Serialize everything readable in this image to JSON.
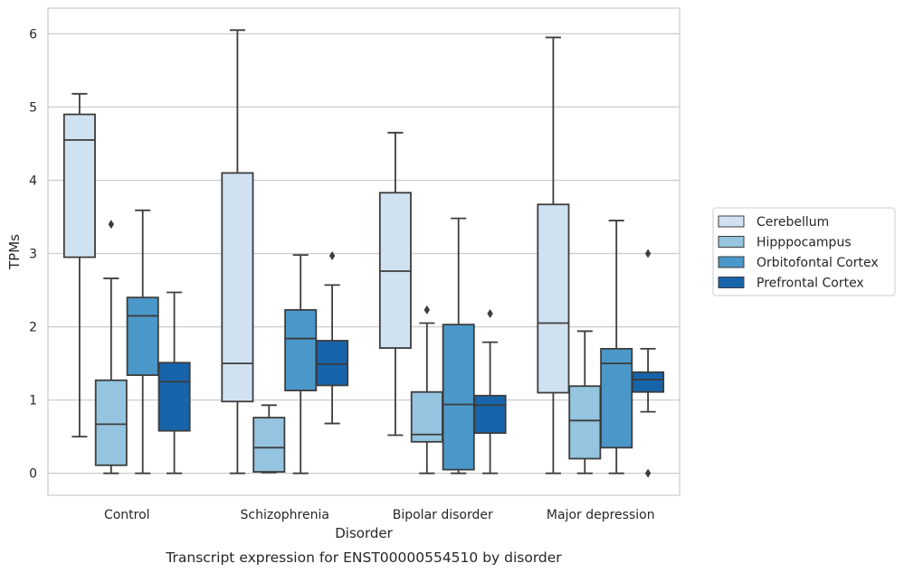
{
  "chart_data": {
    "type": "boxplot",
    "xlabel": "Disorder",
    "ylabel": "TPMs",
    "ylim": [
      -0.3,
      6.35
    ],
    "yticks": [
      0,
      1,
      2,
      3,
      4,
      5,
      6
    ],
    "grid": "horizontal",
    "legend_position": "right",
    "caption": "Transcript expression for ENST00000554510 by disorder",
    "categories": [
      "Control",
      "Schizophrenia",
      "Bipolar disorder",
      "Major depression"
    ],
    "series": [
      {
        "name": "Cerebellum",
        "color": "#d0e1f2",
        "boxes": [
          {
            "whislo": 0.5,
            "q1": 2.95,
            "med": 4.55,
            "q3": 4.9,
            "whishi": 5.18,
            "fliers": []
          },
          {
            "whislo": 0.0,
            "q1": 0.98,
            "med": 1.5,
            "q3": 4.1,
            "whishi": 6.05,
            "fliers": []
          },
          {
            "whislo": 0.52,
            "q1": 1.71,
            "med": 2.76,
            "q3": 3.83,
            "whishi": 4.65,
            "fliers": []
          },
          {
            "whislo": 0.0,
            "q1": 1.1,
            "med": 2.05,
            "q3": 3.67,
            "whishi": 5.95,
            "fliers": []
          }
        ]
      },
      {
        "name": "Hipppocampus",
        "color": "#94c4df",
        "boxes": [
          {
            "whislo": 0.0,
            "q1": 0.11,
            "med": 0.67,
            "q3": 1.27,
            "whishi": 2.66,
            "fliers": [
              3.4
            ]
          },
          {
            "whislo": 0.01,
            "q1": 0.02,
            "med": 0.35,
            "q3": 0.76,
            "whishi": 0.93,
            "fliers": []
          },
          {
            "whislo": 0.0,
            "q1": 0.43,
            "med": 0.53,
            "q3": 1.11,
            "whishi": 2.05,
            "fliers": [
              2.23
            ]
          },
          {
            "whislo": 0.0,
            "q1": 0.2,
            "med": 0.72,
            "q3": 1.19,
            "whishi": 1.94,
            "fliers": []
          }
        ]
      },
      {
        "name": "Orbitofontal Cortex",
        "color": "#4a98c9",
        "boxes": [
          {
            "whislo": 0.0,
            "q1": 1.34,
            "med": 2.15,
            "q3": 2.4,
            "whishi": 3.59,
            "fliers": []
          },
          {
            "whislo": 0.0,
            "q1": 1.13,
            "med": 1.84,
            "q3": 2.23,
            "whishi": 2.98,
            "fliers": []
          },
          {
            "whislo": 0.0,
            "q1": 0.05,
            "med": 0.94,
            "q3": 2.03,
            "whishi": 3.48,
            "fliers": []
          },
          {
            "whislo": 0.0,
            "q1": 0.35,
            "med": 1.5,
            "q3": 1.7,
            "whishi": 3.45,
            "fliers": []
          }
        ]
      },
      {
        "name": "Prefrontal Cortex",
        "color": "#1764ab",
        "boxes": [
          {
            "whislo": 0.0,
            "q1": 0.58,
            "med": 1.25,
            "q3": 1.51,
            "whishi": 2.47,
            "fliers": []
          },
          {
            "whislo": 0.68,
            "q1": 1.2,
            "med": 1.49,
            "q3": 1.81,
            "whishi": 2.57,
            "fliers": [
              2.97
            ]
          },
          {
            "whislo": 0.0,
            "q1": 0.55,
            "med": 0.93,
            "q3": 1.06,
            "whishi": 1.79,
            "fliers": [
              2.18
            ]
          },
          {
            "whislo": 0.84,
            "q1": 1.11,
            "med": 1.28,
            "q3": 1.38,
            "whishi": 1.7,
            "fliers": [
              3.0,
              0.0
            ]
          }
        ]
      }
    ]
  }
}
